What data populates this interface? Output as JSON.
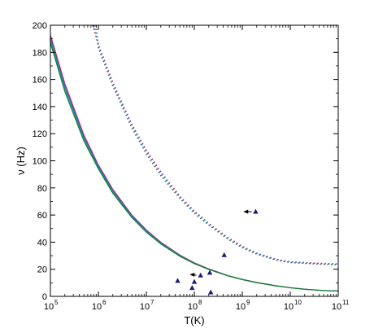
{
  "chart_data": {
    "type": "line",
    "title": "",
    "xlabel": "T(K)",
    "ylabel": "ν (Hz)",
    "xscale": "log",
    "xlim": [
      100000,
      100000000000
    ],
    "ylim": [
      0,
      200
    ],
    "grid": false,
    "x_ticks": [
      {
        "value": 100000,
        "base": "10",
        "exp": "5"
      },
      {
        "value": 1000000,
        "base": "10",
        "exp": "6"
      },
      {
        "value": 10000000,
        "base": "10",
        "exp": "7"
      },
      {
        "value": 100000000,
        "base": "10",
        "exp": "8"
      },
      {
        "value": 1000000000,
        "base": "10",
        "exp": "9"
      },
      {
        "value": 10000000000,
        "base": "10",
        "exp": "10"
      },
      {
        "value": 100000000000,
        "base": "10",
        "exp": "11"
      }
    ],
    "y_ticks": [
      "0",
      "20",
      "40",
      "60",
      "80",
      "100",
      "120",
      "140",
      "160",
      "180",
      "200"
    ],
    "series": [
      {
        "style": "solid",
        "color": "#d01c5c",
        "x": [
          100000,
          200000,
          500000,
          1000000,
          2000000,
          5000000,
          10000000,
          20000000,
          50000000,
          100000000,
          200000000,
          500000000,
          1000000000,
          2000000000,
          5000000000,
          10000000000,
          20000000000,
          50000000000,
          100000000000
        ],
        "y": [
          193,
          157,
          119,
          97,
          79,
          60,
          49,
          40,
          30.5,
          24.8,
          20.3,
          15.4,
          12.6,
          10.3,
          7.9,
          6.4,
          5.3,
          4.3,
          4.0
        ]
      },
      {
        "style": "solid",
        "color": "#1f5fd6",
        "x": [
          100000,
          200000,
          500000,
          1000000,
          2000000,
          5000000,
          10000000,
          20000000,
          50000000,
          100000000,
          200000000,
          500000000,
          1000000000,
          2000000000,
          5000000000,
          10000000000,
          20000000000,
          50000000000,
          100000000000
        ],
        "y": [
          191,
          155,
          117.5,
          96,
          78,
          59.3,
          48.4,
          39.5,
          30.1,
          24.5,
          20.1,
          15.3,
          12.5,
          10.2,
          7.8,
          6.4,
          5.3,
          4.3,
          4.0
        ]
      },
      {
        "style": "solid",
        "color": "#14a088",
        "x": [
          100000,
          200000,
          500000,
          1000000,
          2000000,
          5000000,
          10000000,
          20000000,
          50000000,
          100000000,
          200000000,
          500000000,
          1000000000,
          2000000000,
          5000000000,
          10000000000,
          20000000000,
          50000000000,
          100000000000
        ],
        "y": [
          189,
          153,
          116,
          95,
          77,
          58.6,
          47.8,
          39,
          29.8,
          24.3,
          19.9,
          15.2,
          12.4,
          10.1,
          7.8,
          6.3,
          5.2,
          4.3,
          3.9
        ]
      },
      {
        "style": "solid",
        "color": "#117a1e",
        "x": [
          100000,
          200000,
          500000,
          1000000,
          2000000,
          5000000,
          10000000,
          20000000,
          50000000,
          100000000,
          200000000,
          500000000,
          1000000000,
          2000000000,
          5000000000,
          10000000000,
          20000000000,
          50000000000,
          100000000000
        ],
        "y": [
          187,
          151,
          114.5,
          94,
          76,
          58,
          47.3,
          38.6,
          29.5,
          24.1,
          19.8,
          15.1,
          12.3,
          10.1,
          7.7,
          6.3,
          5.2,
          4.2,
          3.9
        ]
      },
      {
        "style": "dotted",
        "color": "#d01c5c",
        "x": [
          750000,
          1000000,
          2000000,
          5000000,
          10000000,
          20000000,
          50000000,
          100000000,
          200000000,
          500000000,
          1000000000,
          2000000000,
          5000000000,
          10000000000,
          20000000000,
          50000000000,
          100000000000
        ],
        "y": [
          200,
          186,
          158,
          127,
          108,
          92,
          74,
          63,
          54,
          43.5,
          37,
          32,
          27.5,
          25.5,
          25,
          24.3,
          24
        ]
      },
      {
        "style": "dotted",
        "color": "#1f5fd6",
        "x": [
          800000,
          1000000,
          2000000,
          5000000,
          10000000,
          20000000,
          50000000,
          100000000,
          200000000,
          500000000,
          1000000000,
          2000000000,
          5000000000,
          10000000000,
          20000000000,
          50000000000,
          100000000000
        ],
        "y": [
          200,
          185,
          157,
          126,
          107,
          91,
          73.4,
          62.4,
          53.5,
          43,
          36.6,
          31.7,
          27.2,
          25.3,
          24.7,
          24,
          23.7
        ]
      },
      {
        "style": "dotted",
        "color": "#14b0c8",
        "x": [
          850000,
          1000000,
          2000000,
          5000000,
          10000000,
          20000000,
          50000000,
          100000000,
          200000000,
          500000000,
          1000000000,
          2000000000,
          5000000000,
          10000000000,
          20000000000,
          50000000000,
          100000000000
        ],
        "y": [
          200,
          184,
          156,
          125,
          106,
          90,
          72.8,
          61.8,
          53,
          42.6,
          36.2,
          31.4,
          27,
          25.1,
          24.5,
          23.8,
          23.5
        ]
      },
      {
        "style": "dotted",
        "color": "#5a5a5a",
        "x": [
          900000,
          1000000,
          2000000,
          5000000,
          10000000,
          20000000,
          50000000,
          100000000,
          200000000,
          500000000,
          1000000000,
          2000000000,
          5000000000,
          10000000000,
          20000000000,
          50000000000,
          100000000000
        ],
        "y": [
          200,
          183,
          155,
          124,
          105,
          89,
          72.2,
          61.2,
          52.5,
          42.2,
          35.8,
          31.1,
          26.8,
          24.9,
          24.3,
          23.6,
          23.3
        ]
      }
    ],
    "markers": {
      "shape": "triangle",
      "color": "#1c1c7a",
      "points": [
        {
          "x": 45000000,
          "y": 11.5
        },
        {
          "x": 90000000,
          "y": 6.2
        },
        {
          "x": 100000000,
          "y": 10.7
        },
        {
          "x": 135000000,
          "y": 15.5
        },
        {
          "x": 210000000,
          "y": 17.5
        },
        {
          "x": 220000000,
          "y": 3
        },
        {
          "x": 420000000,
          "y": 30.5
        },
        {
          "x": 1900000000,
          "y": 62.5
        }
      ]
    },
    "arrows": [
      {
        "from": {
          "x": 135000000,
          "y": 15.5
        },
        "to": {
          "x": 80000000,
          "y": 16
        }
      },
      {
        "from": {
          "x": 1900000000,
          "y": 62.5
        },
        "to": {
          "x": 1050000000,
          "y": 62.5
        }
      }
    ]
  }
}
